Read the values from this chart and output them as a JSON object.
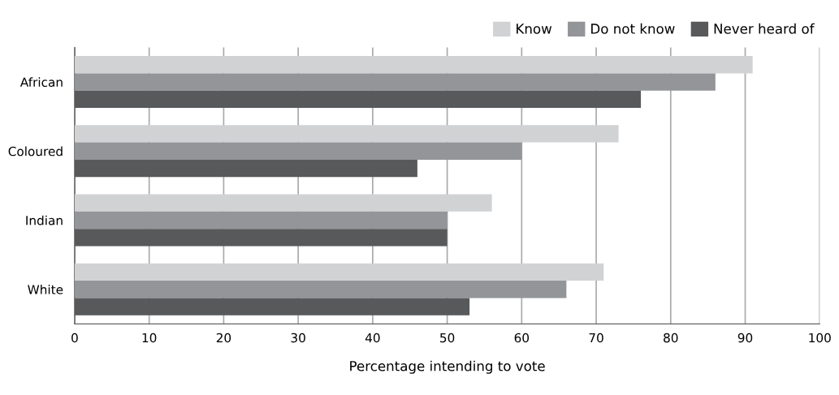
{
  "chart_data": {
    "type": "bar",
    "orientation": "horizontal",
    "xlabel": "Percentage intending to vote",
    "categories": [
      "African",
      "Coloured",
      "Indian",
      "White"
    ],
    "series": [
      {
        "name": "Know",
        "color": "#d1d2d4",
        "values": [
          91,
          73,
          56,
          71
        ]
      },
      {
        "name": "Do not know",
        "color": "#939598",
        "values": [
          86,
          60,
          50,
          66
        ]
      },
      {
        "name": "Never heard of",
        "color": "#58595b",
        "values": [
          76,
          46,
          50,
          53
        ]
      }
    ],
    "xlim": [
      0,
      100
    ],
    "xticks": [
      0,
      10,
      20,
      30,
      40,
      50,
      60,
      70,
      80,
      90,
      100
    ],
    "grid": "x",
    "legend": "top right"
  }
}
